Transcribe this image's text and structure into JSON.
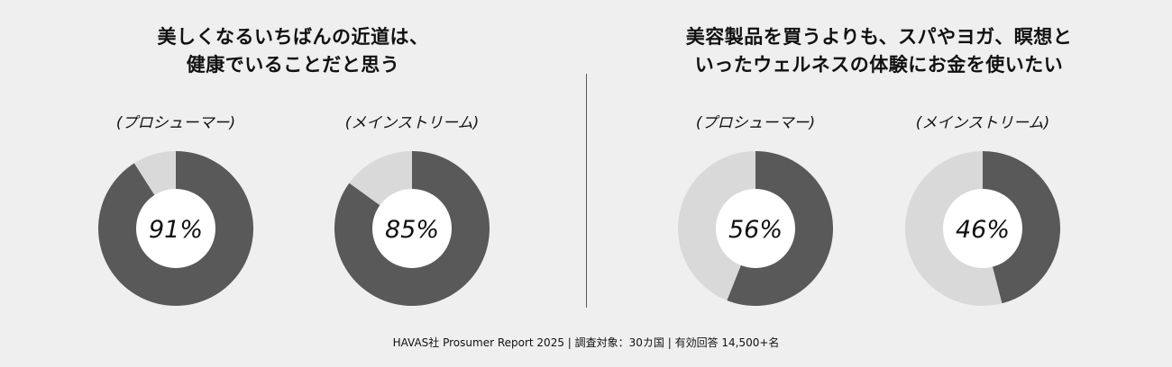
{
  "colors": {
    "background": "#efefef",
    "dark": "#595959",
    "light": "#d9d9d9",
    "hole": "#ffffff"
  },
  "left": {
    "title_line1": "美しくなるいちばんの近道は、",
    "title_line2": "健康でいることだと思う"
  },
  "right": {
    "title_line1": "美容製品を買うよりも、スパやヨガ、瞑想と",
    "title_line2": "いったウェルネスの体験にお金を使いたい"
  },
  "chart_data": [
    {
      "type": "pie",
      "title": "美しくなるいちばんの近道は、健康でいることだと思う",
      "series": [
        {
          "name": "(プロシューマー)",
          "value": 91,
          "label": "91%"
        },
        {
          "name": "(メインストリーム)",
          "value": 85,
          "label": "85%"
        }
      ]
    },
    {
      "type": "pie",
      "title": "美容製品を買うよりも、スパやヨガ、瞑想といったウェルネスの体験にお金を使いたい",
      "series": [
        {
          "name": "(プロシューマー)",
          "value": 56,
          "label": "56%"
        },
        {
          "name": "(メインストリーム)",
          "value": 46,
          "label": "46%"
        }
      ]
    }
  ],
  "footer": "HAVAS社 Prosumer Report 2025 | 調査対象：30カ国 | 有効回答 14,500+名"
}
